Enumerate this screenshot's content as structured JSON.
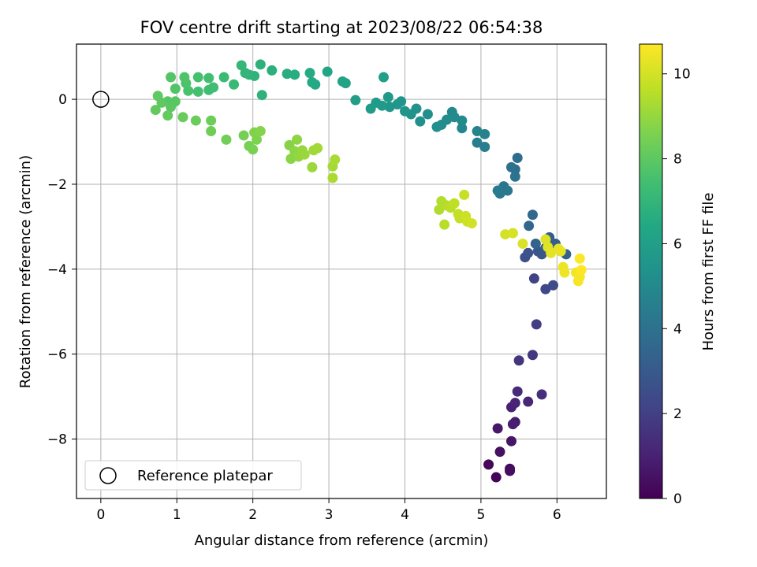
{
  "chart_data": {
    "type": "scatter",
    "title": "FOV centre drift starting at 2023/08/22 06:54:38",
    "xlabel": "Angular distance from reference (arcmin)",
    "ylabel": "Rotation from reference (arcmin)",
    "xlim": [
      -0.32,
      6.65
    ],
    "ylim": [
      -9.4,
      1.3
    ],
    "xticks": [
      0,
      1,
      2,
      3,
      4,
      5,
      6
    ],
    "yticks": [
      -8,
      -6,
      -4,
      -2,
      0
    ],
    "grid": true,
    "colormap": "viridis",
    "colorbar": {
      "label": "Hours from first FF file",
      "range": [
        0,
        10.7
      ],
      "ticks": [
        0,
        2,
        4,
        6,
        8,
        10
      ]
    },
    "legend": {
      "placement": "lower-left",
      "entries": [
        "Reference platepar"
      ]
    },
    "reference_point": {
      "x": 0,
      "y": 0
    },
    "points": [
      {
        "x": 5.2,
        "y": -8.9,
        "h": 0.1
      },
      {
        "x": 5.1,
        "y": -8.6,
        "h": 0.2
      },
      {
        "x": 5.38,
        "y": -8.7,
        "h": 0.3
      },
      {
        "x": 5.38,
        "y": -8.75,
        "h": 0.4
      },
      {
        "x": 5.25,
        "y": -8.3,
        "h": 0.5
      },
      {
        "x": 5.4,
        "y": -8.05,
        "h": 0.6
      },
      {
        "x": 5.22,
        "y": -7.75,
        "h": 0.7
      },
      {
        "x": 5.45,
        "y": -7.6,
        "h": 0.8
      },
      {
        "x": 5.42,
        "y": -7.65,
        "h": 0.9
      },
      {
        "x": 5.4,
        "y": -7.25,
        "h": 1.0
      },
      {
        "x": 5.45,
        "y": -7.15,
        "h": 1.1
      },
      {
        "x": 5.62,
        "y": -7.12,
        "h": 1.2
      },
      {
        "x": 5.48,
        "y": -6.88,
        "h": 1.3
      },
      {
        "x": 5.8,
        "y": -6.95,
        "h": 1.4
      },
      {
        "x": 5.5,
        "y": -6.15,
        "h": 1.6
      },
      {
        "x": 5.68,
        "y": -6.02,
        "h": 1.7
      },
      {
        "x": 5.73,
        "y": -5.3,
        "h": 1.9
      },
      {
        "x": 5.7,
        "y": -4.22,
        "h": 2.1
      },
      {
        "x": 5.85,
        "y": -4.47,
        "h": 2.3
      },
      {
        "x": 5.95,
        "y": -4.38,
        "h": 2.4
      },
      {
        "x": 5.58,
        "y": -3.72,
        "h": 2.6
      },
      {
        "x": 5.62,
        "y": -3.62,
        "h": 2.7
      },
      {
        "x": 5.75,
        "y": -3.58,
        "h": 2.8
      },
      {
        "x": 5.8,
        "y": -3.65,
        "h": 2.9
      },
      {
        "x": 5.85,
        "y": -3.5,
        "h": 3.0
      },
      {
        "x": 5.9,
        "y": -3.25,
        "h": 3.1
      },
      {
        "x": 5.98,
        "y": -3.4,
        "h": 3.2
      },
      {
        "x": 6.12,
        "y": -3.65,
        "h": 3.3
      },
      {
        "x": 5.72,
        "y": -3.4,
        "h": 3.4
      },
      {
        "x": 5.63,
        "y": -2.98,
        "h": 3.5
      },
      {
        "x": 5.68,
        "y": -2.72,
        "h": 3.6
      },
      {
        "x": 5.48,
        "y": -1.38,
        "h": 3.8
      },
      {
        "x": 5.45,
        "y": -1.65,
        "h": 3.9
      },
      {
        "x": 5.4,
        "y": -1.6,
        "h": 4.0
      },
      {
        "x": 5.45,
        "y": -1.82,
        "h": 4.1
      },
      {
        "x": 5.3,
        "y": -2.05,
        "h": 4.2
      },
      {
        "x": 5.35,
        "y": -2.15,
        "h": 4.25
      },
      {
        "x": 5.25,
        "y": -2.22,
        "h": 4.3
      },
      {
        "x": 5.22,
        "y": -2.15,
        "h": 4.35
      },
      {
        "x": 5.05,
        "y": -1.12,
        "h": 4.5
      },
      {
        "x": 4.95,
        "y": -1.02,
        "h": 4.6
      },
      {
        "x": 5.05,
        "y": -0.82,
        "h": 4.7
      },
      {
        "x": 4.95,
        "y": -0.75,
        "h": 4.8
      },
      {
        "x": 4.75,
        "y": -0.68,
        "h": 4.9
      },
      {
        "x": 4.62,
        "y": -0.3,
        "h": 5.0
      },
      {
        "x": 4.65,
        "y": -0.42,
        "h": 5.05
      },
      {
        "x": 4.75,
        "y": -0.5,
        "h": 5.1
      },
      {
        "x": 4.55,
        "y": -0.48,
        "h": 5.15
      },
      {
        "x": 4.48,
        "y": -0.6,
        "h": 5.2
      },
      {
        "x": 4.42,
        "y": -0.65,
        "h": 5.25
      },
      {
        "x": 4.3,
        "y": -0.35,
        "h": 5.3
      },
      {
        "x": 4.2,
        "y": -0.52,
        "h": 5.35
      },
      {
        "x": 4.15,
        "y": -0.22,
        "h": 5.4
      },
      {
        "x": 4.08,
        "y": -0.35,
        "h": 5.45
      },
      {
        "x": 4.0,
        "y": -0.28,
        "h": 5.5
      },
      {
        "x": 3.95,
        "y": -0.05,
        "h": 5.55
      },
      {
        "x": 3.9,
        "y": -0.12,
        "h": 5.6
      },
      {
        "x": 3.8,
        "y": -0.18,
        "h": 5.65
      },
      {
        "x": 3.78,
        "y": 0.05,
        "h": 5.7
      },
      {
        "x": 3.7,
        "y": -0.15,
        "h": 5.75
      },
      {
        "x": 3.62,
        "y": -0.08,
        "h": 5.8
      },
      {
        "x": 3.55,
        "y": -0.22,
        "h": 5.85
      },
      {
        "x": 3.35,
        "y": -0.02,
        "h": 5.95
      },
      {
        "x": 3.72,
        "y": 0.52,
        "h": 6.0
      },
      {
        "x": 3.22,
        "y": 0.38,
        "h": 6.15
      },
      {
        "x": 3.18,
        "y": 0.42,
        "h": 6.2
      },
      {
        "x": 2.98,
        "y": 0.65,
        "h": 6.3
      },
      {
        "x": 2.82,
        "y": 0.35,
        "h": 6.4
      },
      {
        "x": 2.78,
        "y": 0.4,
        "h": 6.45
      },
      {
        "x": 2.75,
        "y": 0.62,
        "h": 6.5
      },
      {
        "x": 2.55,
        "y": 0.58,
        "h": 6.6
      },
      {
        "x": 2.45,
        "y": 0.6,
        "h": 6.65
      },
      {
        "x": 2.25,
        "y": 0.68,
        "h": 6.75
      },
      {
        "x": 2.1,
        "y": 0.82,
        "h": 6.8
      },
      {
        "x": 2.12,
        "y": 0.1,
        "h": 6.85
      },
      {
        "x": 2.02,
        "y": 0.55,
        "h": 6.9
      },
      {
        "x": 1.95,
        "y": 0.58,
        "h": 6.95
      },
      {
        "x": 1.9,
        "y": 0.62,
        "h": 7.0
      },
      {
        "x": 1.85,
        "y": 0.8,
        "h": 7.05
      },
      {
        "x": 1.75,
        "y": 0.35,
        "h": 7.15
      },
      {
        "x": 1.62,
        "y": 0.52,
        "h": 7.25
      },
      {
        "x": 1.48,
        "y": 0.28,
        "h": 7.35
      },
      {
        "x": 1.42,
        "y": 0.22,
        "h": 7.4
      },
      {
        "x": 1.42,
        "y": 0.5,
        "h": 7.45
      },
      {
        "x": 1.28,
        "y": 0.18,
        "h": 7.5
      },
      {
        "x": 1.28,
        "y": 0.52,
        "h": 7.55
      },
      {
        "x": 1.15,
        "y": 0.2,
        "h": 7.6
      },
      {
        "x": 1.12,
        "y": 0.38,
        "h": 7.65
      },
      {
        "x": 1.1,
        "y": 0.52,
        "h": 7.7
      },
      {
        "x": 0.98,
        "y": 0.25,
        "h": 7.75
      },
      {
        "x": 0.92,
        "y": 0.52,
        "h": 7.8
      },
      {
        "x": 0.88,
        "y": -0.05,
        "h": 7.85
      },
      {
        "x": 0.98,
        "y": -0.05,
        "h": 7.9
      },
      {
        "x": 0.92,
        "y": -0.18,
        "h": 7.95
      },
      {
        "x": 0.8,
        "y": -0.08,
        "h": 8.0
      },
      {
        "x": 0.75,
        "y": 0.08,
        "h": 8.05
      },
      {
        "x": 0.72,
        "y": -0.25,
        "h": 8.1
      },
      {
        "x": 0.88,
        "y": -0.38,
        "h": 8.15
      },
      {
        "x": 1.08,
        "y": -0.42,
        "h": 8.2
      },
      {
        "x": 1.25,
        "y": -0.5,
        "h": 8.25
      },
      {
        "x": 1.45,
        "y": -0.5,
        "h": 8.3
      },
      {
        "x": 1.45,
        "y": -0.75,
        "h": 8.35
      },
      {
        "x": 1.65,
        "y": -0.95,
        "h": 8.4
      },
      {
        "x": 1.88,
        "y": -0.85,
        "h": 8.45
      },
      {
        "x": 1.95,
        "y": -1.1,
        "h": 8.5
      },
      {
        "x": 2.0,
        "y": -1.18,
        "h": 8.55
      },
      {
        "x": 2.05,
        "y": -0.95,
        "h": 8.6
      },
      {
        "x": 2.02,
        "y": -0.78,
        "h": 8.65
      },
      {
        "x": 2.1,
        "y": -0.75,
        "h": 8.7
      },
      {
        "x": 2.48,
        "y": -1.08,
        "h": 8.75
      },
      {
        "x": 2.5,
        "y": -1.4,
        "h": 8.8
      },
      {
        "x": 2.55,
        "y": -1.22,
        "h": 8.85
      },
      {
        "x": 2.58,
        "y": -0.95,
        "h": 8.9
      },
      {
        "x": 2.6,
        "y": -1.35,
        "h": 8.95
      },
      {
        "x": 2.65,
        "y": -1.2,
        "h": 9.0
      },
      {
        "x": 2.68,
        "y": -1.3,
        "h": 9.05
      },
      {
        "x": 2.78,
        "y": -1.6,
        "h": 9.1
      },
      {
        "x": 2.8,
        "y": -1.2,
        "h": 9.15
      },
      {
        "x": 2.85,
        "y": -1.15,
        "h": 9.2
      },
      {
        "x": 3.05,
        "y": -1.58,
        "h": 9.25
      },
      {
        "x": 3.08,
        "y": -1.42,
        "h": 9.3
      },
      {
        "x": 3.05,
        "y": -1.85,
        "h": 9.35
      },
      {
        "x": 4.45,
        "y": -2.6,
        "h": 9.4
      },
      {
        "x": 4.48,
        "y": -2.4,
        "h": 9.45
      },
      {
        "x": 4.55,
        "y": -2.5,
        "h": 9.5
      },
      {
        "x": 4.52,
        "y": -2.95,
        "h": 9.55
      },
      {
        "x": 4.6,
        "y": -2.55,
        "h": 9.6
      },
      {
        "x": 4.65,
        "y": -2.45,
        "h": 9.65
      },
      {
        "x": 4.7,
        "y": -2.7,
        "h": 9.7
      },
      {
        "x": 4.72,
        "y": -2.8,
        "h": 9.75
      },
      {
        "x": 4.78,
        "y": -2.25,
        "h": 9.8
      },
      {
        "x": 4.8,
        "y": -2.75,
        "h": 9.85
      },
      {
        "x": 4.82,
        "y": -2.88,
        "h": 9.9
      },
      {
        "x": 4.88,
        "y": -2.92,
        "h": 9.95
      },
      {
        "x": 5.32,
        "y": -3.18,
        "h": 10.0
      },
      {
        "x": 5.42,
        "y": -3.15,
        "h": 10.05
      },
      {
        "x": 5.55,
        "y": -3.4,
        "h": 10.1
      },
      {
        "x": 5.85,
        "y": -3.3,
        "h": 10.15
      },
      {
        "x": 5.88,
        "y": -3.48,
        "h": 10.2
      },
      {
        "x": 5.92,
        "y": -3.62,
        "h": 10.25
      },
      {
        "x": 6.02,
        "y": -3.52,
        "h": 10.3
      },
      {
        "x": 6.05,
        "y": -3.58,
        "h": 10.35
      },
      {
        "x": 6.08,
        "y": -3.95,
        "h": 10.4
      },
      {
        "x": 6.1,
        "y": -4.08,
        "h": 10.45
      },
      {
        "x": 6.25,
        "y": -4.08,
        "h": 10.5
      },
      {
        "x": 6.28,
        "y": -4.28,
        "h": 10.55
      },
      {
        "x": 6.3,
        "y": -4.18,
        "h": 10.6
      },
      {
        "x": 6.3,
        "y": -3.75,
        "h": 10.65
      },
      {
        "x": 6.32,
        "y": -4.02,
        "h": 10.7
      }
    ]
  }
}
